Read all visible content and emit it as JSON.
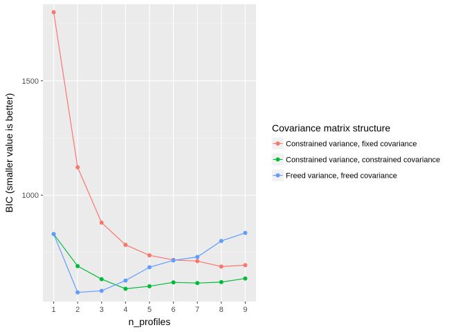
{
  "chart_data": {
    "type": "line",
    "xlabel": "n_profiles",
    "ylabel": "BIC (smaller value is better)",
    "x": [
      1,
      2,
      3,
      4,
      5,
      6,
      7,
      8,
      9
    ],
    "xlim": [
      0.55,
      9.45
    ],
    "ylim": [
      535,
      1835
    ],
    "yticks": [
      1000,
      1500
    ],
    "grid": true,
    "legend": {
      "title": "Covariance matrix structure",
      "placement": "right"
    },
    "series": [
      {
        "name": "Constrained variance, fixed covariance",
        "color": "#f8766d",
        "values": [
          1800,
          1122,
          880,
          783,
          737,
          717,
          712,
          688,
          694
        ]
      },
      {
        "name": "Constrained variance, constrained covariance",
        "color": "#00ba38",
        "values": [
          830,
          690,
          633,
          591,
          602,
          619,
          616,
          620,
          636
        ]
      },
      {
        "name": "Freed variance, freed covariance",
        "color": "#619cff",
        "values": [
          830,
          575,
          582,
          627,
          685,
          715,
          730,
          800,
          835
        ]
      }
    ]
  }
}
